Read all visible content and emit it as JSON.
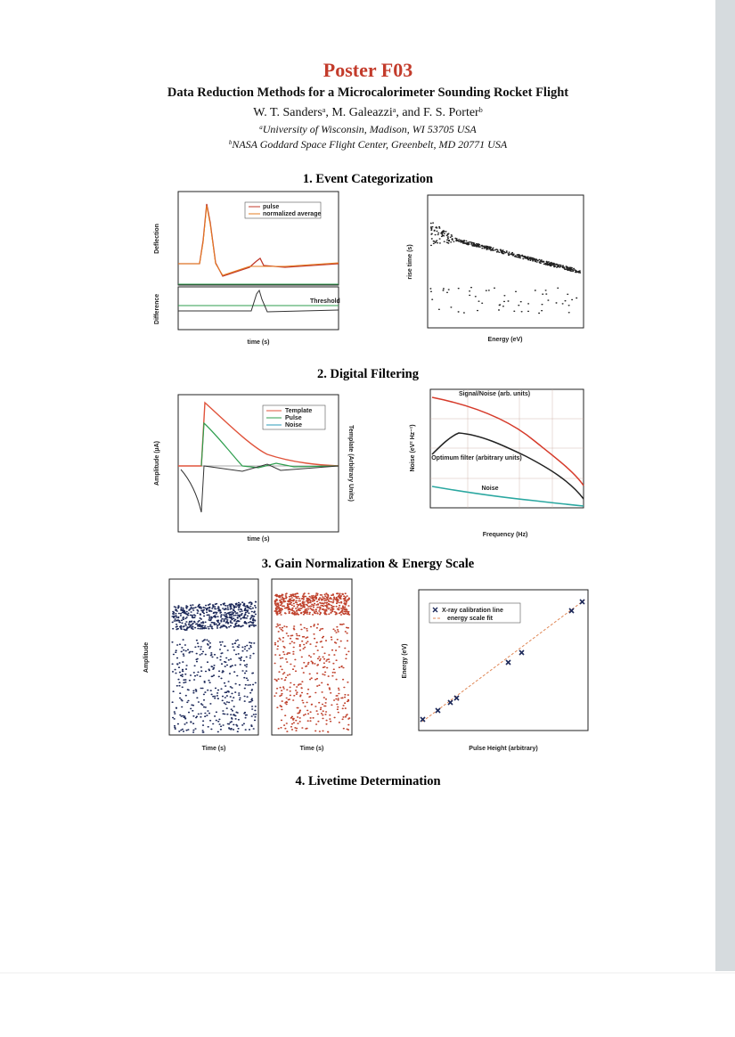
{
  "header": {
    "title": "Poster F03",
    "subtitle": "Data Reduction Methods for a Microcalorimeter Sounding Rocket Flight",
    "authors": [
      {
        "text": "W. T. Sanders",
        "mark": "a"
      },
      {
        "text": ", M. Galeazzi",
        "mark": "a"
      },
      {
        "text": ", and F. S. Porter",
        "mark": "b"
      }
    ],
    "affiliations": [
      {
        "mark": "a",
        "text": "University of Wisconsin, Madison, WI 53705 USA"
      },
      {
        "mark": "b",
        "text": "NASA Goddard Space Flight Center, Greenbelt, MD 20771 USA"
      }
    ]
  },
  "sections": [
    {
      "heading": "1. Event Categorization",
      "figures": [
        {
          "x_label": "time (s)",
          "y_labels": [
            "Deflection",
            "Difference"
          ],
          "legend": [
            "pulse",
            "normalized average"
          ],
          "annotation": "Threshold"
        },
        {
          "x_label": "Energy (eV)",
          "y_labels": [
            "rise time (s)"
          ]
        }
      ]
    },
    {
      "heading": "2. Digital Filtering",
      "figures": [
        {
          "x_label": "time (s)",
          "y_labels": [
            "Amplitude (µA)",
            "Template (Arbitrary Units)"
          ],
          "legend": [
            "Template",
            "Pulse",
            "Noise"
          ]
        },
        {
          "x_label": "Frequency (Hz)",
          "y_labels": [
            "Noise (eV² Hz⁻¹)"
          ],
          "annotations": [
            "Signal/Noise (arb. units)",
            "Optimum filter (arbitrary units)",
            "Noise"
          ]
        }
      ]
    },
    {
      "heading": "3. Gain Normalization & Energy Scale",
      "figures": [
        {
          "x_label": "Time (s)",
          "y_labels": [
            "Amplitude"
          ]
        },
        {
          "x_label": "Time (s)"
        },
        {
          "x_label": "Pulse Height (arbitrary)",
          "y_labels": [
            "Energy (eV)"
          ],
          "legend": [
            "X-ray calibration line",
            "energy scale fit"
          ]
        }
      ]
    },
    {
      "heading": "4. Livetime Determination"
    }
  ]
}
